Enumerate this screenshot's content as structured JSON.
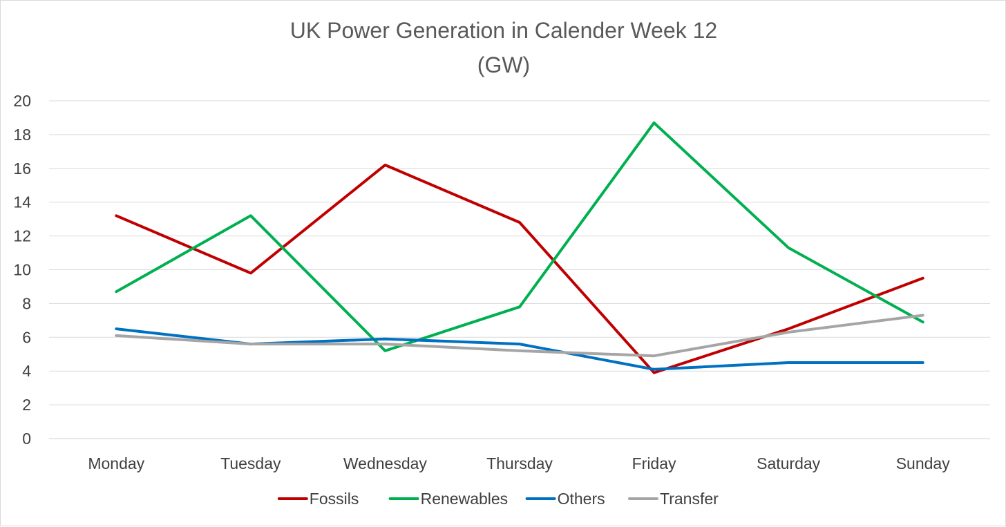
{
  "chart_data": {
    "type": "line",
    "title_lines": [
      "UK Power Generation in Calender Week 12",
      "(GW)"
    ],
    "xlabel": "",
    "ylabel": "",
    "categories": [
      "Monday",
      "Tuesday",
      "Wednesday",
      "Thursday",
      "Friday",
      "Saturday",
      "Sunday"
    ],
    "ylim": [
      0,
      20
    ],
    "yticks": [
      0,
      2,
      4,
      6,
      8,
      10,
      12,
      14,
      16,
      18,
      20
    ],
    "grid": true,
    "legend_position": "bottom",
    "series": [
      {
        "name": "Fossils",
        "color": "#C00000",
        "values": [
          13.2,
          9.8,
          16.2,
          12.8,
          3.9,
          6.5,
          9.5
        ]
      },
      {
        "name": "Renewables",
        "color": "#00B050",
        "values": [
          8.7,
          13.2,
          5.2,
          7.8,
          18.7,
          11.3,
          6.9
        ]
      },
      {
        "name": "Others",
        "color": "#0070C0",
        "values": [
          6.5,
          5.6,
          5.9,
          5.6,
          4.1,
          4.5,
          4.5
        ]
      },
      {
        "name": "Transfer",
        "color": "#A5A5A5",
        "values": [
          6.1,
          5.6,
          5.6,
          5.2,
          4.9,
          6.3,
          7.3
        ]
      }
    ]
  }
}
